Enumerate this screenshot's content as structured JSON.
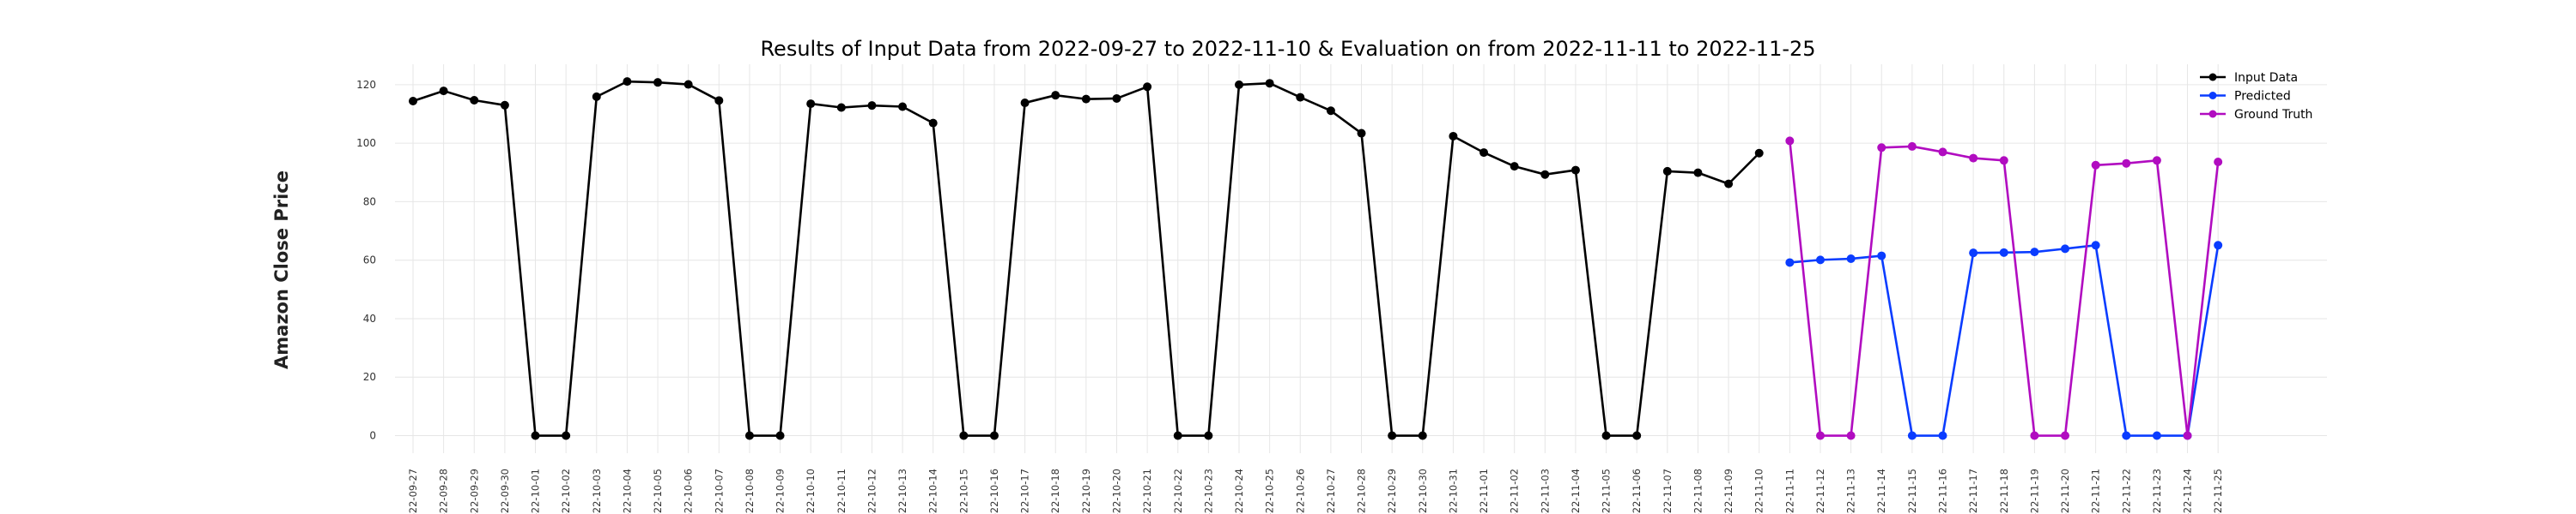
{
  "chart_data": {
    "type": "line",
    "title": "Results of Input Data from 2022-09-27 to 2022-11-10 & Evaluation on from 2022-11-11 to 2022-11-25",
    "xlabel": "",
    "ylabel": "Amazon Close Price",
    "ylim": [
      -6,
      127
    ],
    "yticks": [
      0,
      20,
      40,
      60,
      80,
      100,
      120
    ],
    "grid": true,
    "legend_position": "top-right",
    "x_labels": [
      "-22-09-27",
      "-22-09-28",
      "-22-09-29",
      "-22-09-30",
      "-22-10-01",
      "-22-10-02",
      "-22-10-03",
      "-22-10-04",
      "-22-10-05",
      "-22-10-06",
      "-22-10-07",
      "-22-10-08",
      "-22-10-09",
      "-22-10-10",
      "-22-10-11",
      "-22-10-12",
      "-22-10-13",
      "-22-10-14",
      "-22-10-15",
      "-22-10-16",
      "-22-10-17",
      "-22-10-18",
      "-22-10-19",
      "-22-10-20",
      "-22-10-21",
      "-22-10-22",
      "-22-10-23",
      "-22-10-24",
      "-22-10-25",
      "-22-10-26",
      "-22-10-27",
      "-22-10-28",
      "-22-10-29",
      "-22-10-30",
      "-22-10-31",
      "-22-11-01",
      "-22-11-02",
      "-22-11-03",
      "-22-11-04",
      "-22-11-05",
      "-22-11-06",
      "-22-11-07",
      "-22-11-08",
      "-22-11-09",
      "-22-11-10",
      "-22-11-11",
      "-22-11-12",
      "-22-11-13",
      "-22-11-14",
      "-22-11-15",
      "-22-11-16",
      "-22-11-17",
      "-22-11-18",
      "-22-11-19",
      "-22-11-20",
      "-22-11-21",
      "-22-11-22",
      "-22-11-23",
      "-22-11-24",
      "-22-11-25"
    ],
    "series": [
      {
        "name": "Input Data",
        "color": "#000000",
        "start": "-22-09-27",
        "values": [
          114.4,
          117.9,
          114.7,
          113.0,
          0,
          0,
          115.9,
          121.1,
          120.8,
          120.1,
          114.6,
          0,
          0,
          113.5,
          112.2,
          112.9,
          112.5,
          106.9,
          0,
          0,
          113.8,
          116.4,
          115.1,
          115.3,
          119.3,
          0,
          0,
          120.0,
          120.5,
          115.7,
          111.1,
          103.4,
          0,
          0,
          102.4,
          96.8,
          92.1,
          89.3,
          90.8,
          0,
          0,
          90.4,
          89.9,
          86.1,
          96.6
        ]
      },
      {
        "name": "Predicted",
        "color": "#0a3cff",
        "start": "-22-11-11",
        "values": [
          59.2,
          60.1,
          60.5,
          61.5,
          0,
          0,
          62.5,
          62.6,
          62.8,
          63.9,
          65.1,
          0,
          0,
          0,
          65.1
        ]
      },
      {
        "name": "Ground Truth",
        "color": "#b10cc0",
        "start": "-22-11-11",
        "values": [
          100.8,
          0,
          0,
          98.5,
          98.9,
          97.0,
          94.9,
          94.1,
          0,
          0,
          92.5,
          93.1,
          94.1,
          0,
          93.6
        ]
      }
    ]
  }
}
